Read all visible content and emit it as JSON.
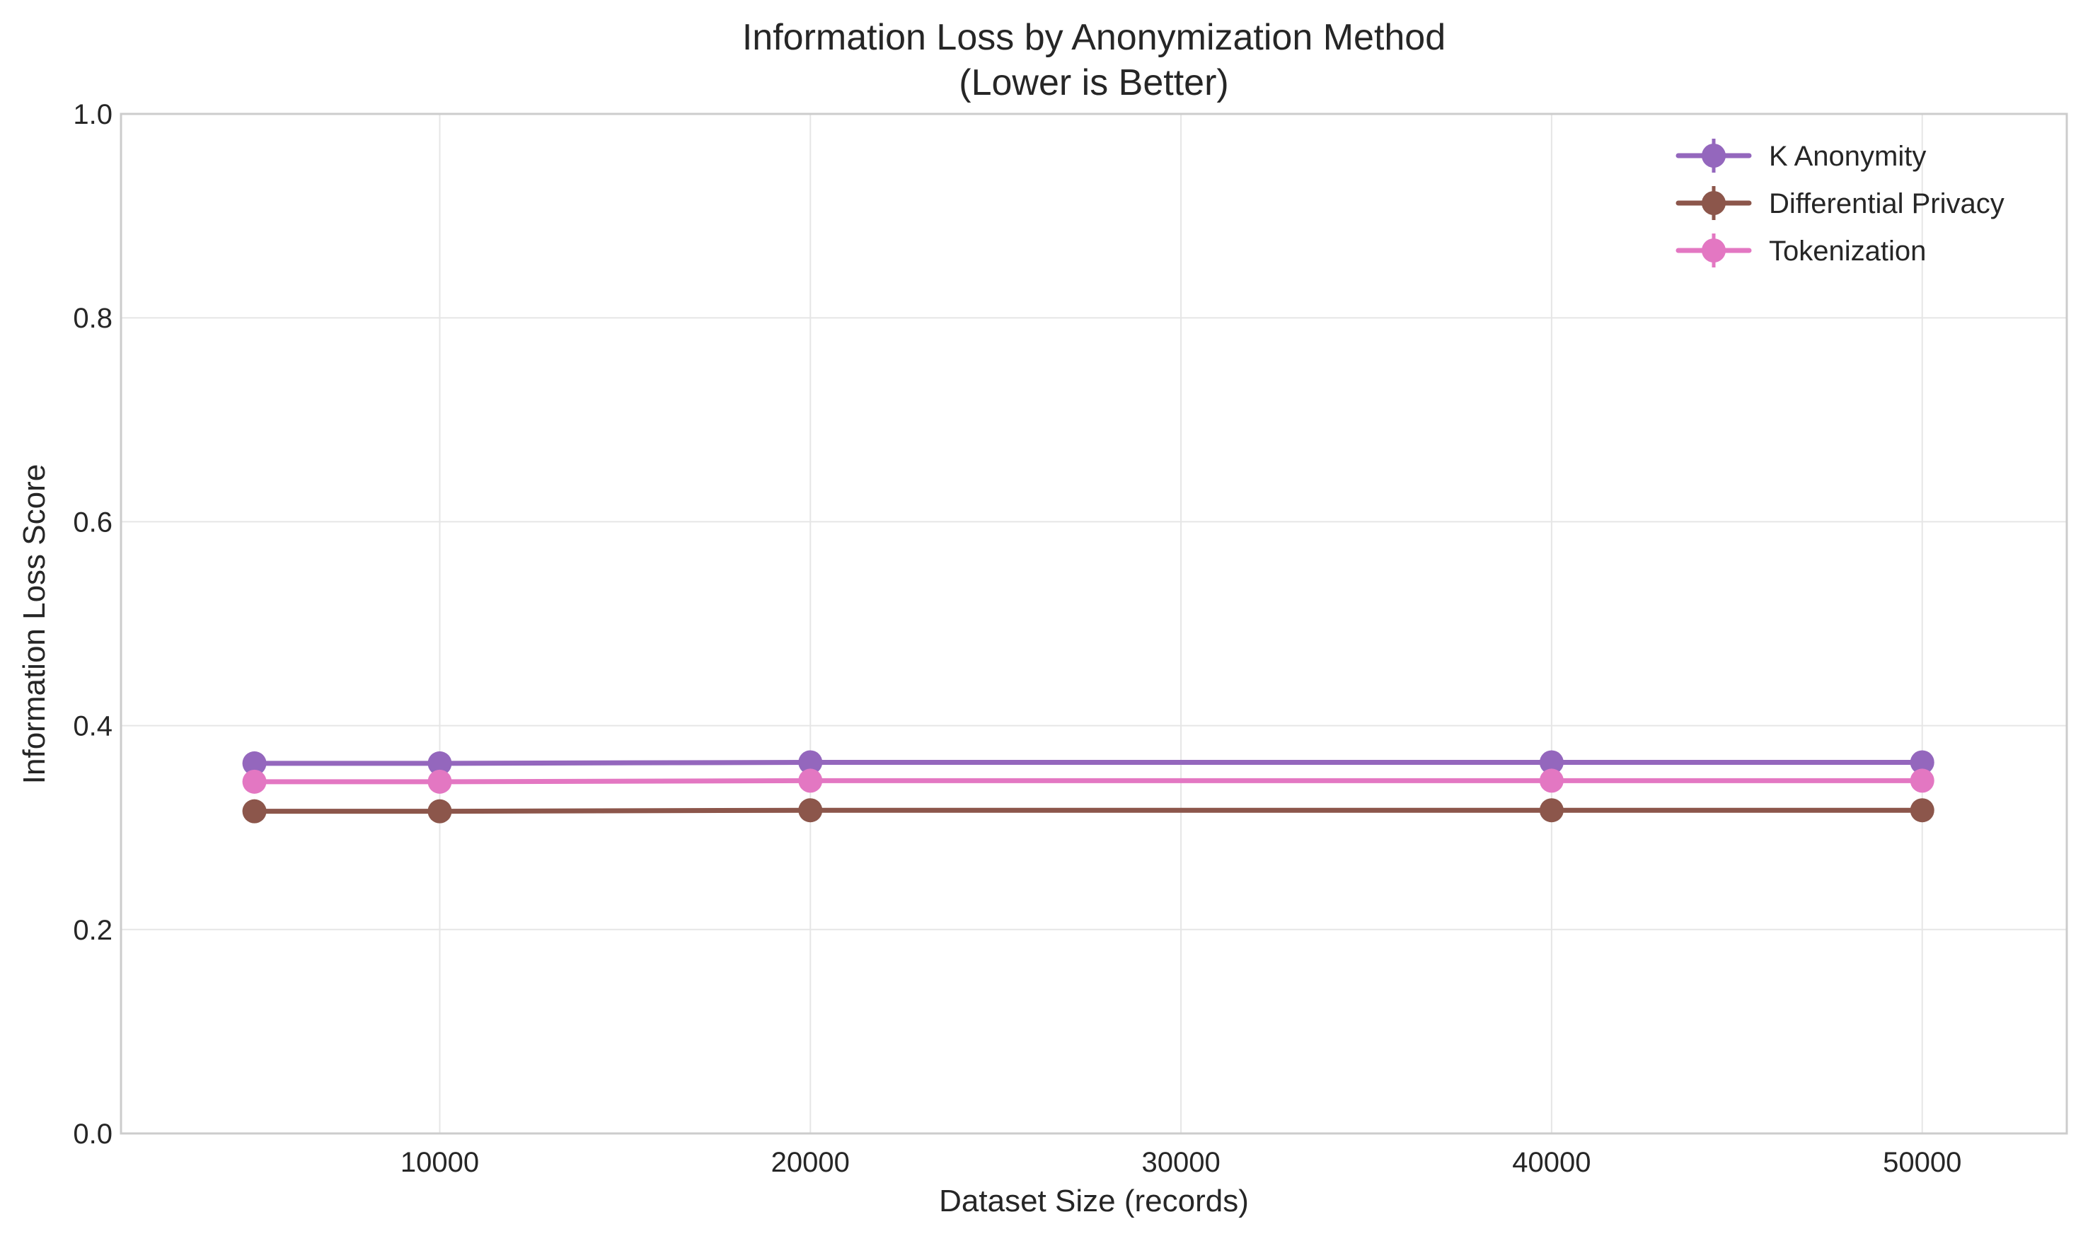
{
  "chart_data": {
    "type": "line",
    "title_line1": "Information Loss by Anonymization Method",
    "title_line2": "(Lower is Better)",
    "xlabel": "Dataset Size (records)",
    "ylabel": "Information Loss Score",
    "xlim": [
      1400,
      53900
    ],
    "ylim": [
      0,
      1
    ],
    "x_ticks": [
      10000,
      20000,
      30000,
      40000,
      50000
    ],
    "y_ticks": [
      0.0,
      0.2,
      0.4,
      0.6,
      0.8,
      1.0
    ],
    "x_tick_labels": [
      "10000",
      "20000",
      "30000",
      "40000",
      "50000"
    ],
    "y_tick_labels": [
      "0.0",
      "0.2",
      "0.4",
      "0.6",
      "0.8",
      "1.0"
    ],
    "x": [
      5000,
      10000,
      20000,
      40000,
      50000
    ],
    "series": [
      {
        "name": "K Anonymity",
        "color": "#9467bd",
        "values": [
          0.363,
          0.363,
          0.364,
          0.364,
          0.364
        ]
      },
      {
        "name": "Differential Privacy",
        "color": "#8c564b",
        "values": [
          0.316,
          0.316,
          0.317,
          0.317,
          0.317
        ]
      },
      {
        "name": "Tokenization",
        "color": "#e377c2",
        "values": [
          0.345,
          0.345,
          0.346,
          0.346,
          0.346
        ]
      }
    ],
    "grid": true,
    "legend_position": "top-right"
  }
}
